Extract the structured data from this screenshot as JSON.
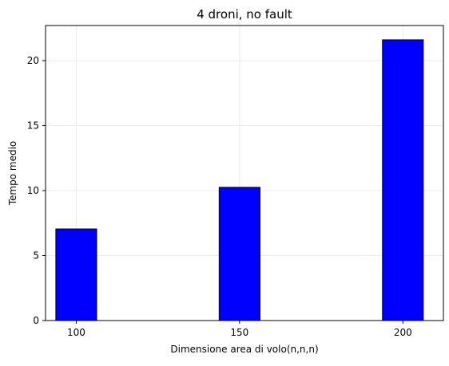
{
  "chart_data": {
    "type": "bar",
    "title": "4 droni, no fault",
    "xlabel": "Dimensione area di volo(n,n,n)",
    "ylabel": "Tempo medio",
    "x": [
      100,
      150,
      200
    ],
    "values": [
      7.05,
      10.25,
      21.6
    ],
    "bar_width": 12.5,
    "xlim": [
      90.6,
      212.4
    ],
    "ylim": [
      0,
      22.7
    ],
    "xticks": [
      100,
      150,
      200
    ],
    "yticks": [
      0,
      5,
      10,
      15,
      20
    ],
    "grid": true,
    "legend": false,
    "colors": {
      "bar_fill": "#0000ff",
      "bar_edge": "#000000",
      "grid": "#ebebeb",
      "axes": "#000000"
    }
  }
}
